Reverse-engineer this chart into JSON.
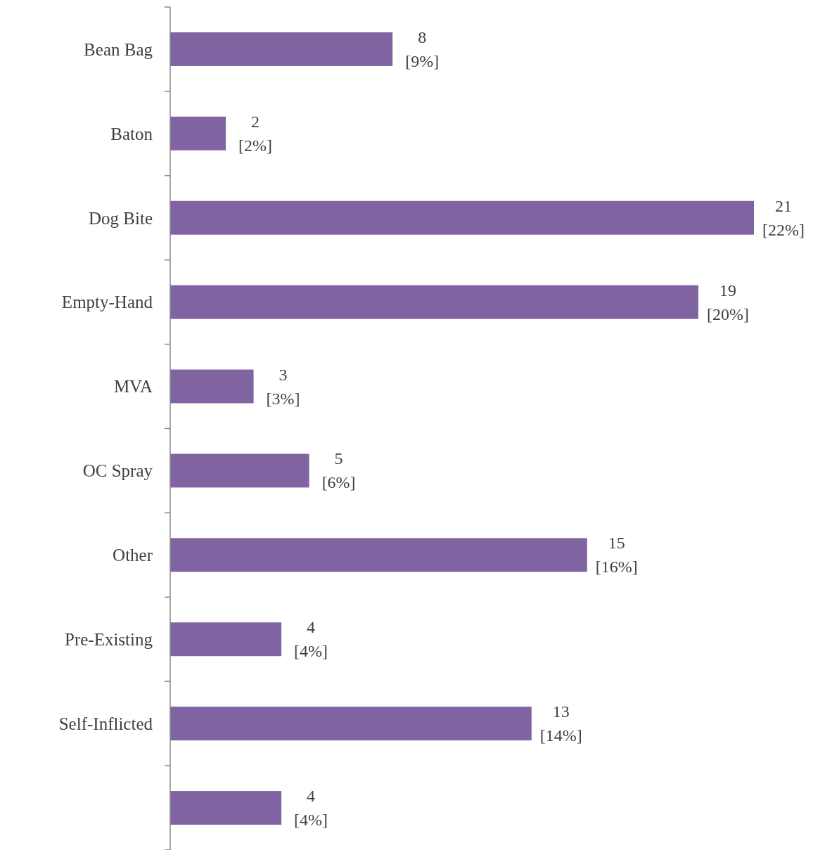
{
  "chart_data": {
    "type": "bar",
    "orientation": "horizontal",
    "categories": [
      "Bean Bag",
      "Baton",
      "Dog Bite",
      "Empty-Hand",
      "MVA",
      "OC Spray",
      "Other",
      "Pre-Existing",
      "Self-Inflicted",
      null
    ],
    "values": [
      8,
      2,
      21,
      19,
      3,
      5,
      15,
      4,
      13,
      4
    ],
    "value_labels": [
      "8\n[9%]",
      "2\n[2%]",
      "21\n[22%]",
      "19\n[20%]",
      "3\n[3%]",
      "5\n[6%]",
      "15\n[16%]",
      "4\n[4%]",
      "13\n[14%]",
      "4\n[4%]"
    ],
    "color": "#8064a2",
    "tick_labels": "y"
  }
}
